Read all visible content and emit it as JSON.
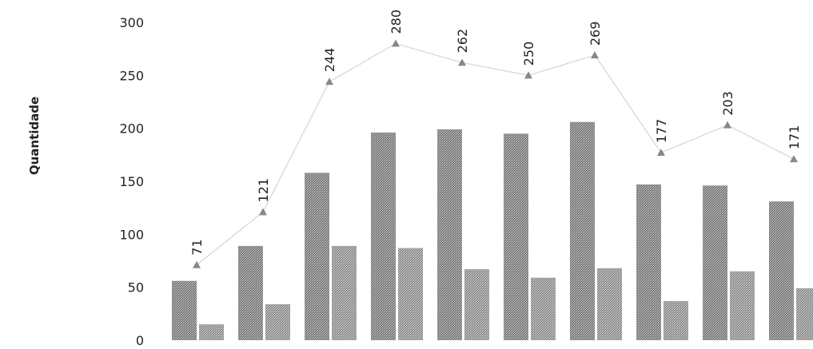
{
  "chart_data": {
    "type": "bar",
    "title": "",
    "xlabel": "",
    "ylabel": "Quantidade",
    "ylim": [
      0,
      300
    ],
    "yticks": [
      0,
      50,
      100,
      150,
      200,
      250,
      300
    ],
    "categories": [
      "",
      "",
      "",
      "",
      "",
      "",
      "",
      "",
      "",
      ""
    ],
    "series": [
      {
        "values": [
          56,
          89,
          158,
          196,
          199,
          195,
          206,
          147,
          146,
          131
        ]
      },
      {
        "values": [
          15,
          34,
          89,
          87,
          67,
          59,
          68,
          37,
          65,
          49
        ]
      },
      {
        "type": "line",
        "values": [
          71,
          121,
          244,
          280,
          262,
          250,
          269,
          177,
          203,
          171
        ]
      }
    ],
    "data_labels": [
      "71",
      "121",
      "244",
      "280",
      "262",
      "250",
      "269",
      "177",
      "203",
      "171"
    ],
    "grid": false,
    "colors": {
      "bar_primary": "#8a8a8a",
      "bar_secondary": "#9a9a9a",
      "line": "#c8c8c8",
      "marker": "#888888"
    }
  }
}
